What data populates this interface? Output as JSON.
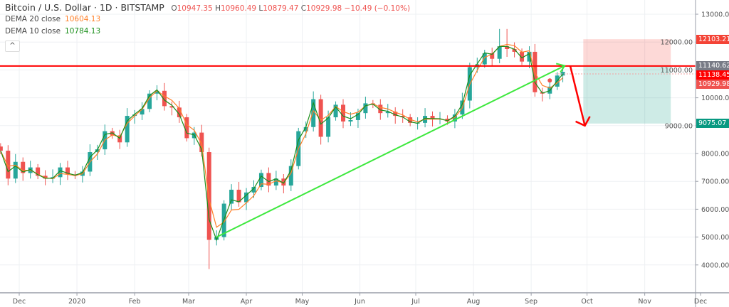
{
  "header": {
    "symbol_title": "Bitcoin / U.S. Dollar · 1D · BITSTAMP",
    "ohlc": [
      {
        "k": "O",
        "v": "10947.35"
      },
      {
        "k": "H",
        "v": "10960.49"
      },
      {
        "k": "L",
        "v": "10879.47"
      },
      {
        "k": "C",
        "v": "10929.98 −10.49 (−0.10%)"
      }
    ],
    "indicators": [
      {
        "label": "DEMA 20 close",
        "value": "10604.13",
        "color": "#ff7f27"
      },
      {
        "label": "DEMA 10 close",
        "value": "10784.13",
        "color": "#1b8f1b"
      }
    ],
    "collapse_icon": "chevron-up-icon"
  },
  "price_labels": [
    {
      "text": "12103.21",
      "price": 12103.21,
      "color": "#f44336"
    },
    {
      "text": "11140.62",
      "price": 11140.62,
      "color": "#787b86"
    },
    {
      "text": "11138.45",
      "price": 11138.45,
      "color": "#ff0000",
      "offset": "below"
    },
    {
      "text": "10929.98",
      "price": 10929.98,
      "color": "#ef5350",
      "offset": "below2"
    },
    {
      "text": "9075.07",
      "price": 9075.07,
      "color": "#089981"
    }
  ],
  "chart_data": {
    "type": "candlestick",
    "title": "Bitcoin / U.S. Dollar · 1D · BITSTAMP",
    "x_ticks": [
      {
        "date": "2019-12-01",
        "label": "Dec"
      },
      {
        "date": "2020-01-01",
        "label": "2020"
      },
      {
        "date": "2020-02-01",
        "label": "Feb"
      },
      {
        "date": "2020-03-01",
        "label": "Mar"
      },
      {
        "date": "2020-04-01",
        "label": "Apr"
      },
      {
        "date": "2020-05-01",
        "label": "May"
      },
      {
        "date": "2020-06-01",
        "label": "Jun"
      },
      {
        "date": "2020-07-01",
        "label": "Jul"
      },
      {
        "date": "2020-08-01",
        "label": "Aug"
      },
      {
        "date": "2020-09-01",
        "label": "Sep"
      },
      {
        "date": "2020-10-01",
        "label": "Oct"
      },
      {
        "date": "2020-11-01",
        "label": "Nov"
      },
      {
        "date": "2020-12-01",
        "label": "Dec"
      }
    ],
    "y_ticks": [
      13000,
      12000,
      11000,
      10000,
      9000,
      8000,
      7000,
      6000,
      5000,
      4000
    ],
    "ylim": [
      3000,
      13500
    ],
    "grid": true,
    "up_color": "#26a69a",
    "down_color": "#ef5350",
    "closes": [
      [
        "2019-11-21",
        8100
      ],
      [
        "2019-11-25",
        7100
      ],
      [
        "2019-11-29",
        7700
      ],
      [
        "2019-12-03",
        7300
      ],
      [
        "2019-12-07",
        7500
      ],
      [
        "2019-12-11",
        7200
      ],
      [
        "2019-12-15",
        7100
      ],
      [
        "2019-12-19",
        7150
      ],
      [
        "2019-12-23",
        7500
      ],
      [
        "2019-12-27",
        7250
      ],
      [
        "2019-12-31",
        7200
      ],
      [
        "2020-01-04",
        7350
      ],
      [
        "2020-01-08",
        8050
      ],
      [
        "2020-01-12",
        8150
      ],
      [
        "2020-01-16",
        8800
      ],
      [
        "2020-01-20",
        8650
      ],
      [
        "2020-01-24",
        8400
      ],
      [
        "2020-01-28",
        9350
      ],
      [
        "2020-02-01",
        9400
      ],
      [
        "2020-02-05",
        9600
      ],
      [
        "2020-02-09",
        10150
      ],
      [
        "2020-02-13",
        10250
      ],
      [
        "2020-02-17",
        9700
      ],
      [
        "2020-02-21",
        9650
      ],
      [
        "2020-02-25",
        9300
      ],
      [
        "2020-02-29",
        8550
      ],
      [
        "2020-03-04",
        8750
      ],
      [
        "2020-03-08",
        8050
      ],
      [
        "2020-03-12",
        4900
      ],
      [
        "2020-03-16",
        5000
      ],
      [
        "2020-03-20",
        6200
      ],
      [
        "2020-03-24",
        6700
      ],
      [
        "2020-03-28",
        6250
      ],
      [
        "2020-04-01",
        6600
      ],
      [
        "2020-04-05",
        6800
      ],
      [
        "2020-04-09",
        7300
      ],
      [
        "2020-04-13",
        6850
      ],
      [
        "2020-04-17",
        7100
      ],
      [
        "2020-04-21",
        6850
      ],
      [
        "2020-04-25",
        7550
      ],
      [
        "2020-04-29",
        8800
      ],
      [
        "2020-05-03",
        8950
      ],
      [
        "2020-05-07",
        9950
      ],
      [
        "2020-05-11",
        8600
      ],
      [
        "2020-05-15",
        9300
      ],
      [
        "2020-05-19",
        9750
      ],
      [
        "2020-05-23",
        9150
      ],
      [
        "2020-05-27",
        9200
      ],
      [
        "2020-05-31",
        9450
      ],
      [
        "2020-06-04",
        9800
      ],
      [
        "2020-06-08",
        9750
      ],
      [
        "2020-06-12",
        9450
      ],
      [
        "2020-06-16",
        9500
      ],
      [
        "2020-06-20",
        9350
      ],
      [
        "2020-06-24",
        9300
      ],
      [
        "2020-06-28",
        9100
      ],
      [
        "2020-07-02",
        9100
      ],
      [
        "2020-07-06",
        9350
      ],
      [
        "2020-07-10",
        9250
      ],
      [
        "2020-07-14",
        9250
      ],
      [
        "2020-07-18",
        9150
      ],
      [
        "2020-07-22",
        9400
      ],
      [
        "2020-07-26",
        9900
      ],
      [
        "2020-07-30",
        11100
      ],
      [
        "2020-08-03",
        11200
      ],
      [
        "2020-08-07",
        11600
      ],
      [
        "2020-08-11",
        11400
      ],
      [
        "2020-08-15",
        11850
      ],
      [
        "2020-08-19",
        11750
      ],
      [
        "2020-08-23",
        11650
      ],
      [
        "2020-08-27",
        11300
      ],
      [
        "2020-08-31",
        11650
      ],
      [
        "2020-09-03",
        10200
      ],
      [
        "2020-09-07",
        10150
      ],
      [
        "2020-09-11",
        10400
      ],
      [
        "2020-09-15",
        10800
      ],
      [
        "2020-09-18",
        10930
      ]
    ],
    "extreme_lows": [
      [
        "2020-03-12",
        3850
      ]
    ],
    "extreme_highs": [
      [
        "2020-08-17",
        12470
      ]
    ],
    "drawings": {
      "horizontal_line": {
        "price": 11140.62,
        "color": "#ff0000"
      },
      "trendline": {
        "from": [
          "2020-03-16",
          5000
        ],
        "to": [
          "2020-09-19",
          11150
        ],
        "color": "#3ee83e"
      },
      "forecast_arrow": {
        "from": [
          "2020-09-22",
          11140
        ],
        "to": [
          "2020-10-01",
          9075
        ],
        "color": "#ff0000"
      },
      "short_position": {
        "start": "2020-09-29",
        "end": "2020-11-15",
        "entry": 11140.62,
        "stop": 12103.21,
        "target": 9075.07
      },
      "marker": {
        "date": "2020-09-11",
        "price": 10620,
        "color": "#ef5350"
      }
    }
  }
}
